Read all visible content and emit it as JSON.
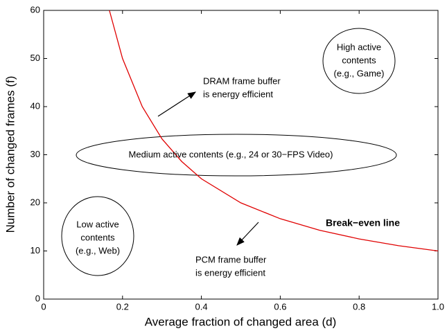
{
  "chart_data": {
    "type": "line",
    "xlabel": "Average fraction of changed area (d)",
    "ylabel": "Number of changed frames (f)",
    "x": [
      0.1667,
      0.2,
      0.25,
      0.3,
      0.35,
      0.4,
      0.5,
      0.6,
      0.7,
      0.8,
      0.9,
      1.0
    ],
    "series": [
      {
        "name": "Break−even line",
        "color": "#e00000",
        "values": [
          60,
          50,
          40,
          33.3,
          28.6,
          25,
          20,
          16.7,
          14.3,
          12.5,
          11.1,
          10
        ]
      }
    ],
    "xlim": [
      0,
      1
    ],
    "xticks": [
      0,
      0.2,
      0.4,
      0.6,
      0.8,
      {
        "value": 1,
        "label": "1.0"
      }
    ],
    "ylim": [
      0,
      60
    ],
    "yticks": [
      0,
      10,
      20,
      30,
      40,
      50,
      60
    ],
    "annotations": [
      [
        "High active",
        "contents",
        "(e.g., Game)"
      ],
      [
        "Medium active contents (e.g., 24 or 30−FPS Video)"
      ],
      [
        "Low active",
        "contents",
        "(e.g., Web)"
      ],
      [
        "DRAM frame buffer",
        "is energy efficient"
      ],
      [
        "PCM frame buffer",
        "is energy efficient"
      ]
    ]
  }
}
